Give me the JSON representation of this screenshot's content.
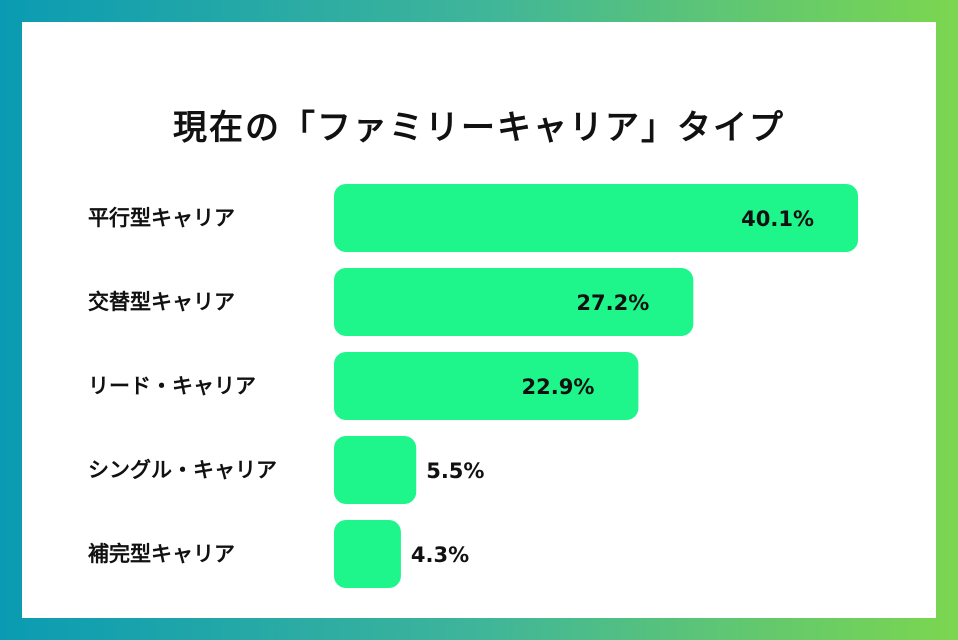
{
  "title": "現在の「ファミリーキャリア」タイプ",
  "colors": {
    "bar": "#1ef58a",
    "text": "#111111"
  },
  "chart_data": {
    "type": "bar",
    "orientation": "horizontal",
    "title": "現在の「ファミリーキャリア」タイプ",
    "categories": [
      "平行型キャリア",
      "交替型キャリア",
      "リード・キャリア",
      "シングル・キャリア",
      "補完型キャリア"
    ],
    "values": [
      40.1,
      27.2,
      22.9,
      5.5,
      4.3
    ],
    "value_labels": [
      "40.1%",
      "27.2%",
      "22.9%",
      "5.5%",
      "4.3%"
    ],
    "unit": "%",
    "xlim": [
      0,
      40.1
    ],
    "grid": false,
    "legend": "none"
  }
}
